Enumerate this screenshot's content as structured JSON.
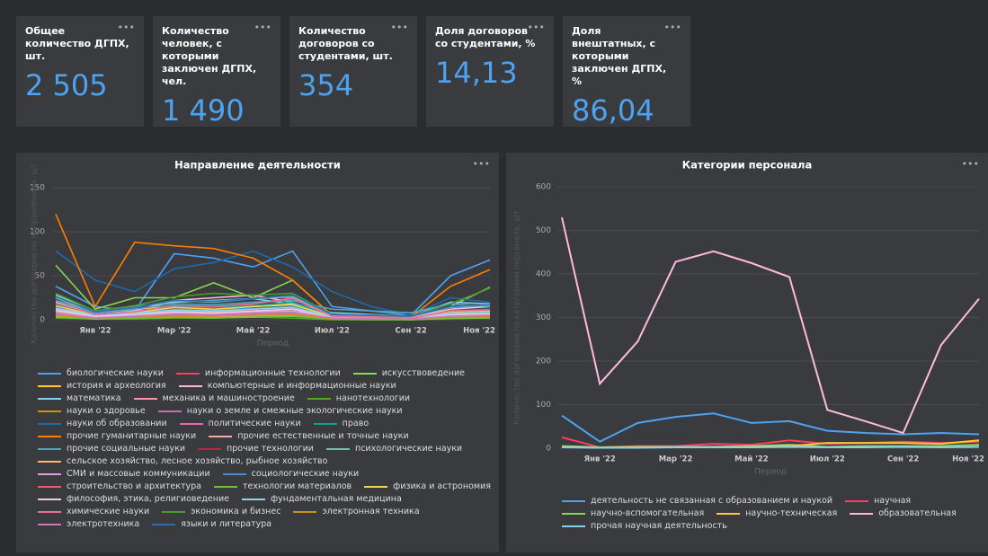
{
  "cards": [
    {
      "title": "Общее количество ДГПХ, шт.",
      "value": "2 505"
    },
    {
      "title": "Количество человек, с которыми заключен ДГПХ, чел.",
      "value": "1 490"
    },
    {
      "title": "Количество договоров со студентами, шт.",
      "value": "354"
    },
    {
      "title": "Доля договоров со студентами, %",
      "value": "14,13"
    },
    {
      "title": "Доля внештатных, с которыми заключен ДГПХ, %",
      "value": "86,04"
    }
  ],
  "chart_data": [
    {
      "type": "line",
      "title": "Направление деятельности",
      "ylabel": "Количество договоров по направлениям, шт",
      "xlabel": "Период",
      "categories": [
        null,
        "Янв '22",
        null,
        "Мар '22",
        null,
        "Май '22",
        null,
        "Июл '22",
        null,
        "Сен '22",
        null,
        "Ноя '22"
      ],
      "ylim": [
        0,
        150
      ],
      "yticks": [
        0,
        50,
        100,
        150
      ],
      "series": [
        {
          "name": "биологические науки",
          "color": "#4DA2F1",
          "values": [
            38,
            15,
            10,
            75,
            70,
            60,
            78,
            15,
            10,
            5,
            50,
            68
          ]
        },
        {
          "name": "информационные технологии",
          "color": "#FF3D64",
          "values": [
            15,
            5,
            8,
            12,
            10,
            18,
            25,
            4,
            3,
            2,
            10,
            12
          ]
        },
        {
          "name": "искусствоведение",
          "color": "#8AD554",
          "values": [
            62,
            12,
            25,
            25,
            42,
            25,
            45,
            5,
            3,
            2,
            15,
            37
          ]
        },
        {
          "name": "история и археология",
          "color": "#FFC636",
          "values": [
            25,
            8,
            12,
            15,
            12,
            15,
            18,
            3,
            2,
            2,
            8,
            10
          ]
        },
        {
          "name": "компьютерные и информационные науки",
          "color": "#FFB9DD",
          "values": [
            20,
            6,
            10,
            22,
            25,
            28,
            20,
            5,
            4,
            3,
            12,
            15
          ]
        },
        {
          "name": "математика",
          "color": "#84D1EE",
          "values": [
            28,
            10,
            15,
            20,
            22,
            24,
            18,
            8,
            6,
            4,
            20,
            18
          ]
        },
        {
          "name": "механика и машиностроение",
          "color": "#FF91A1",
          "values": [
            10,
            3,
            5,
            8,
            7,
            10,
            12,
            2,
            2,
            1,
            5,
            6
          ]
        },
        {
          "name": "нанотехнологии",
          "color": "#54A520",
          "values": [
            2,
            1,
            1,
            2,
            2,
            3,
            2,
            0,
            0,
            0,
            1,
            2
          ]
        },
        {
          "name": "науки о здоровье",
          "color": "#DB9100",
          "values": [
            12,
            4,
            6,
            10,
            9,
            12,
            14,
            3,
            2,
            2,
            6,
            8
          ]
        },
        {
          "name": "науки о земле и смежные экологические науки",
          "color": "#BA74B3",
          "values": [
            8,
            3,
            4,
            7,
            6,
            8,
            9,
            2,
            1,
            1,
            4,
            5
          ]
        },
        {
          "name": "науки об образовании",
          "color": "#1F68A9",
          "values": [
            78,
            45,
            32,
            58,
            65,
            78,
            60,
            32,
            15,
            5,
            25,
            20
          ]
        },
        {
          "name": "политические науки",
          "color": "#ED65A9",
          "values": [
            6,
            2,
            3,
            5,
            5,
            6,
            7,
            1,
            1,
            1,
            3,
            4
          ]
        },
        {
          "name": "право",
          "color": "#0FA08D",
          "values": [
            18,
            6,
            9,
            15,
            14,
            16,
            20,
            4,
            3,
            2,
            10,
            12
          ]
        },
        {
          "name": "прочие гуманитарные науки",
          "color": "#FF7E00",
          "values": [
            120,
            15,
            88,
            84,
            81,
            70,
            45,
            5,
            4,
            3,
            38,
            57
          ]
        },
        {
          "name": "прочие естественные и точные науки",
          "color": "#E8B0A4",
          "values": [
            5,
            2,
            3,
            4,
            4,
            5,
            6,
            1,
            1,
            1,
            3,
            3
          ]
        },
        {
          "name": "прочие социальные науки",
          "color": "#52A6C5",
          "values": [
            22,
            8,
            12,
            18,
            17,
            20,
            22,
            12,
            10,
            8,
            18,
            15
          ]
        },
        {
          "name": "прочие технологии",
          "color": "#BE2443",
          "values": [
            7,
            2,
            3,
            6,
            5,
            7,
            8,
            2,
            1,
            1,
            4,
            5
          ]
        },
        {
          "name": "психологические науки",
          "color": "#70C1B3",
          "values": [
            25,
            10,
            14,
            22,
            20,
            24,
            26,
            6,
            5,
            4,
            14,
            16
          ]
        },
        {
          "name": "сельское хозяйство, лесное хозяйство, рыбное хозяйство",
          "color": "#FFB46C",
          "values": [
            4,
            1,
            2,
            3,
            3,
            4,
            5,
            1,
            1,
            0,
            2,
            2
          ]
        },
        {
          "name": "СМИ и массовые коммуникации",
          "color": "#D8A1E0",
          "values": [
            9,
            3,
            5,
            8,
            7,
            9,
            10,
            2,
            2,
            1,
            5,
            6
          ]
        },
        {
          "name": "социологические науки",
          "color": "#3F8FD1",
          "values": [
            14,
            5,
            7,
            12,
            11,
            13,
            15,
            3,
            3,
            2,
            8,
            9
          ]
        },
        {
          "name": "строительство и архитектура",
          "color": "#F05A6E",
          "values": [
            6,
            2,
            3,
            5,
            4,
            6,
            7,
            1,
            1,
            1,
            3,
            4
          ]
        },
        {
          "name": "технологии материалов",
          "color": "#6CC139",
          "values": [
            3,
            1,
            2,
            3,
            2,
            3,
            4,
            1,
            0,
            0,
            2,
            2
          ]
        },
        {
          "name": "физика и астрономия",
          "color": "#F5D343",
          "values": [
            16,
            5,
            8,
            14,
            12,
            15,
            17,
            4,
            3,
            2,
            9,
            10
          ]
        },
        {
          "name": "философия, этика, религиоведение",
          "color": "#F4C9E0",
          "values": [
            11,
            4,
            6,
            9,
            8,
            10,
            12,
            3,
            2,
            2,
            6,
            7
          ]
        },
        {
          "name": "фундаментальная медицина",
          "color": "#8FD5F2",
          "values": [
            13,
            5,
            7,
            11,
            10,
            12,
            14,
            3,
            2,
            2,
            7,
            8
          ]
        },
        {
          "name": "химические науки",
          "color": "#E66F9A",
          "values": [
            19,
            6,
            9,
            16,
            15,
            18,
            24,
            4,
            3,
            2,
            10,
            11
          ]
        },
        {
          "name": "экономика и бизнес",
          "color": "#4C9A2A",
          "values": [
            30,
            10,
            16,
            26,
            30,
            28,
            30,
            6,
            5,
            4,
            18,
            36
          ]
        },
        {
          "name": "электронная техника",
          "color": "#C99125",
          "values": [
            5,
            2,
            3,
            4,
            4,
            5,
            6,
            1,
            1,
            1,
            3,
            3
          ]
        },
        {
          "name": "электротехника",
          "color": "#C77AB7",
          "values": [
            7,
            2,
            4,
            6,
            5,
            7,
            8,
            2,
            1,
            1,
            4,
            5
          ]
        },
        {
          "name": "языки и литература",
          "color": "#2E6DB4",
          "values": [
            26,
            9,
            14,
            22,
            21,
            24,
            28,
            6,
            5,
            4,
            15,
            17
          ]
        }
      ]
    },
    {
      "type": "line",
      "title": "Категории персонала",
      "ylabel": "Количество договоров по категориям персонала, шт",
      "xlabel": "Период",
      "categories": [
        null,
        "Янв '22",
        null,
        "Мар '22",
        null,
        "Май '22",
        null,
        "Июл '22",
        null,
        "Сен '22",
        null,
        "Ноя '22"
      ],
      "ylim": [
        0,
        600
      ],
      "yticks": [
        0,
        100,
        200,
        300,
        400,
        500,
        600
      ],
      "series": [
        {
          "name": "деятельность не связанная с образованием и наукой",
          "color": "#4DA2F1",
          "values": [
            75,
            15,
            58,
            72,
            80,
            58,
            62,
            40,
            35,
            32,
            35,
            32
          ]
        },
        {
          "name": "научная",
          "color": "#FF3D64",
          "values": [
            25,
            2,
            5,
            5,
            10,
            8,
            18,
            10,
            12,
            15,
            12,
            15
          ]
        },
        {
          "name": "научно-вспомогательная",
          "color": "#8AD554",
          "values": [
            5,
            2,
            3,
            3,
            3,
            5,
            8,
            3,
            5,
            5,
            5,
            8
          ]
        },
        {
          "name": "научно-техническая",
          "color": "#FFC636",
          "values": [
            3,
            1,
            2,
            2,
            3,
            3,
            5,
            12,
            12,
            12,
            10,
            18
          ]
        },
        {
          "name": "образовательная",
          "color": "#FFB9DD",
          "values": [
            530,
            148,
            245,
            428,
            452,
            425,
            393,
            88,
            62,
            35,
            237,
            343
          ]
        },
        {
          "name": "прочая научная деятельность",
          "color": "#84D1EE",
          "values": [
            2,
            1,
            1,
            2,
            2,
            2,
            3,
            2,
            2,
            3,
            2,
            3
          ]
        }
      ]
    }
  ]
}
